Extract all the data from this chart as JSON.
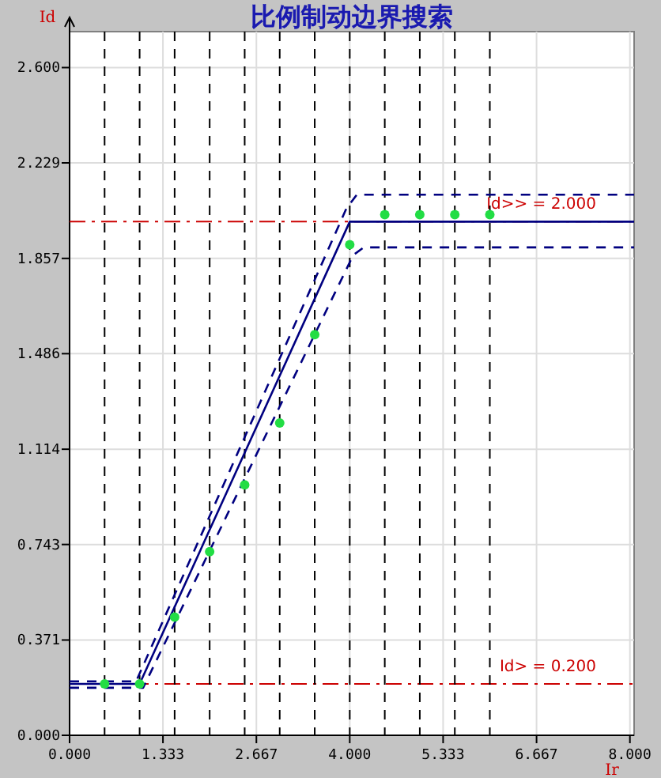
{
  "chart_data": {
    "type": "line",
    "title": "比例制动边界搜索",
    "xlabel": "Ir",
    "ylabel": "Id",
    "xlim": [
      0,
      8.06
    ],
    "ylim": [
      0,
      2.74
    ],
    "xticks": [
      {
        "value": 0,
        "label": "0.000"
      },
      {
        "value": 1.333,
        "label": "1.333"
      },
      {
        "value": 2.667,
        "label": "2.667"
      },
      {
        "value": 4,
        "label": "4.000"
      },
      {
        "value": 5.333,
        "label": "5.333"
      },
      {
        "value": 6.667,
        "label": "6.667"
      },
      {
        "value": 8,
        "label": "8.000"
      }
    ],
    "yticks": [
      {
        "value": 0,
        "label": "0.000"
      },
      {
        "value": 0.371,
        "label": "0.371"
      },
      {
        "value": 0.743,
        "label": "0.743"
      },
      {
        "value": 1.114,
        "label": "1.114"
      },
      {
        "value": 1.486,
        "label": "1.486"
      },
      {
        "value": 1.857,
        "label": "1.857"
      },
      {
        "value": 2.229,
        "label": "2.229"
      },
      {
        "value": 2.6,
        "label": "2.600"
      }
    ],
    "grid": true,
    "series": [
      {
        "color": "#000080",
        "line_style": "solid",
        "marker": "none",
        "x": [
          0,
          1,
          4,
          8.06
        ],
        "values": [
          0.2,
          0.2,
          2.0,
          2.0
        ]
      },
      {
        "color": "#000080",
        "line_style": "dashed",
        "marker": "none",
        "x": [
          0,
          0.95,
          3.95,
          4.1,
          8.06
        ],
        "values": [
          0.21,
          0.21,
          2.05,
          2.105,
          2.105
        ]
      },
      {
        "color": "#000080",
        "line_style": "dashed",
        "marker": "none",
        "x": [
          0,
          1.05,
          4.05,
          4.2,
          8.06
        ],
        "values": [
          0.185,
          0.185,
          1.87,
          1.9,
          1.9
        ]
      },
      {
        "type": "scatter",
        "color": "#22dd44",
        "marker": "circle",
        "x": [
          0.5,
          1,
          1.5,
          2,
          2.5,
          3,
          3.5,
          4,
          4.5,
          5,
          5.5,
          6
        ],
        "values": [
          0.2,
          0.2,
          0.46,
          0.715,
          0.975,
          1.216,
          1.56,
          1.91,
          2.027,
          2.027,
          2.027,
          2.027
        ]
      }
    ],
    "ref_lines": [
      {
        "axis": "y",
        "value": 0.2,
        "label": "Id> = 0.200",
        "color": "#cc0000",
        "line_style": "dashdot"
      },
      {
        "axis": "y",
        "value": 2.0,
        "label": "Id>> = 2.000",
        "color": "#cc0000",
        "line_style": "dashdot"
      },
      {
        "axis": "x",
        "value": 0.5,
        "color": "#000000",
        "line_style": "dashed"
      },
      {
        "axis": "x",
        "value": 1,
        "color": "#000000",
        "line_style": "dashed"
      },
      {
        "axis": "x",
        "value": 1.5,
        "color": "#000000",
        "line_style": "dashed"
      },
      {
        "axis": "x",
        "value": 2,
        "color": "#000000",
        "line_style": "dashed"
      },
      {
        "axis": "x",
        "value": 2.5,
        "color": "#000000",
        "line_style": "dashed"
      },
      {
        "axis": "x",
        "value": 3,
        "color": "#000000",
        "line_style": "dashed"
      },
      {
        "axis": "x",
        "value": 3.5,
        "color": "#000000",
        "line_style": "dashed"
      },
      {
        "axis": "x",
        "value": 4,
        "color": "#000000",
        "line_style": "dashed"
      },
      {
        "axis": "x",
        "value": 4.5,
        "color": "#000000",
        "line_style": "dashed"
      },
      {
        "axis": "x",
        "value": 5,
        "color": "#000000",
        "line_style": "dashed"
      },
      {
        "axis": "x",
        "value": 5.5,
        "color": "#000000",
        "line_style": "dashed"
      },
      {
        "axis": "x",
        "value": 6,
        "color": "#000000",
        "line_style": "dashed"
      }
    ]
  }
}
